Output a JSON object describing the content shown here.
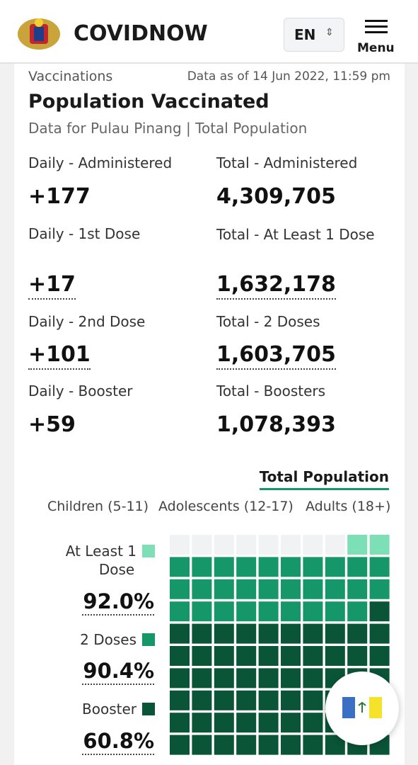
{
  "header": {
    "brand": "COVIDNOW",
    "language": "EN",
    "menu": "Menu"
  },
  "card": {
    "section": "Vaccinations",
    "updated": "Data as of 14 Jun 2022, 11:59 pm",
    "title": "Population Vaccinated",
    "subtitle": "Data for Pulau Pinang | Total Population"
  },
  "stats": [
    {
      "label": "Daily - Administered",
      "value": "+177"
    },
    {
      "label": "Total - Administered",
      "value": "4,309,705"
    },
    {
      "label": "Daily - 1st Dose",
      "value": "+17"
    },
    {
      "label": "Total - At Least 1 Dose",
      "value": "1,632,178"
    },
    {
      "label": "Daily - 2nd Dose",
      "value": "+101"
    },
    {
      "label": "Total - 2 Doses",
      "value": "1,603,705"
    },
    {
      "label": "Daily - Booster",
      "value": "+59"
    },
    {
      "label": "Total - Boosters",
      "value": "1,078,393"
    }
  ],
  "tab": "Total Population",
  "filters": [
    "Children (5-11)",
    "Adolescents (12-17)",
    "Adults (18+)"
  ],
  "chart_data": {
    "type": "waffle",
    "series": [
      {
        "name": "At Least 1 Dose",
        "color": "#7ddfb5",
        "value": 92.0,
        "value_label": "92.0%"
      },
      {
        "name": "2 Doses",
        "color": "#16976a",
        "value": 90.4,
        "value_label": "90.4%"
      },
      {
        "name": "Booster",
        "color": "#0a5537",
        "value": 60.8,
        "value_label": "60.8%"
      }
    ]
  }
}
